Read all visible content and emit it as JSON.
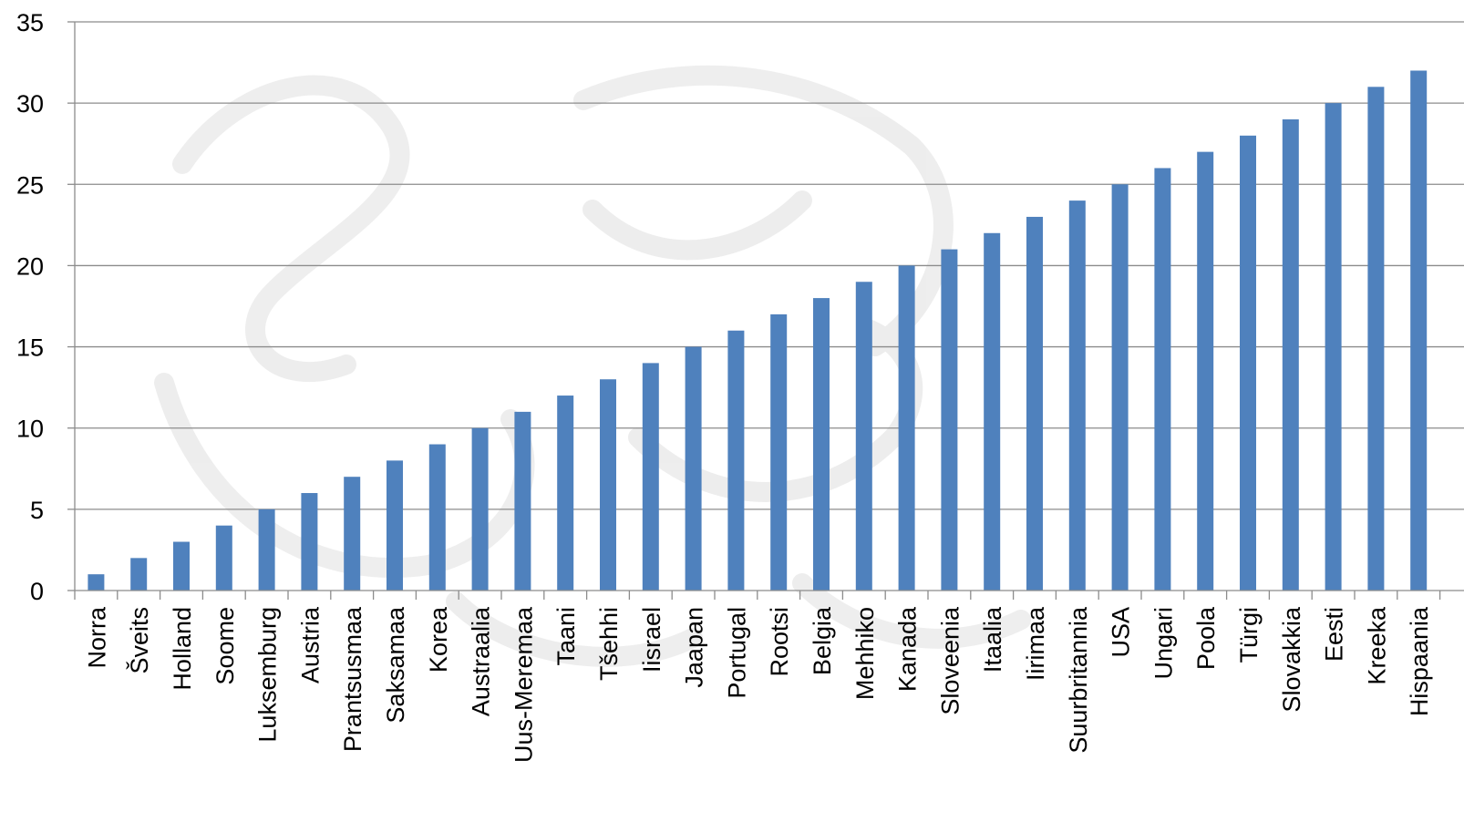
{
  "chart_data": {
    "type": "bar",
    "title": "",
    "xlabel": "",
    "ylabel": "",
    "ylim": [
      0,
      35
    ],
    "yticks": [
      0,
      5,
      10,
      15,
      20,
      25,
      30,
      35
    ],
    "grid": true,
    "legend": "none",
    "bar_color": "#4f81bd",
    "categories": [
      "Norra",
      "Šveits",
      "Holland",
      "Soome",
      "Luksemburg",
      "Austria",
      "Prantsusmaa",
      "Saksamaa",
      "Korea",
      "Austraalia",
      "Uus-Meremaa",
      "Taani",
      "Tšehhi",
      "Iisrael",
      "Jaapan",
      "Portugal",
      "Rootsi",
      "Belgia",
      "Mehhiko",
      "Kanada",
      "Sloveenia",
      "Itaalia",
      "Iirimaa",
      "Suurbritannia",
      "USA",
      "Ungari",
      "Poola",
      "Türgi",
      "Slovakkia",
      "Eesti",
      "Kreeka",
      "Hispaania"
    ],
    "values": [
      1,
      2,
      3,
      4,
      5,
      6,
      7,
      8,
      9,
      10,
      11,
      12,
      13,
      14,
      15,
      16,
      17,
      18,
      19,
      20,
      21,
      22,
      23,
      24,
      25,
      26,
      27,
      28,
      29,
      30,
      31,
      32
    ]
  }
}
